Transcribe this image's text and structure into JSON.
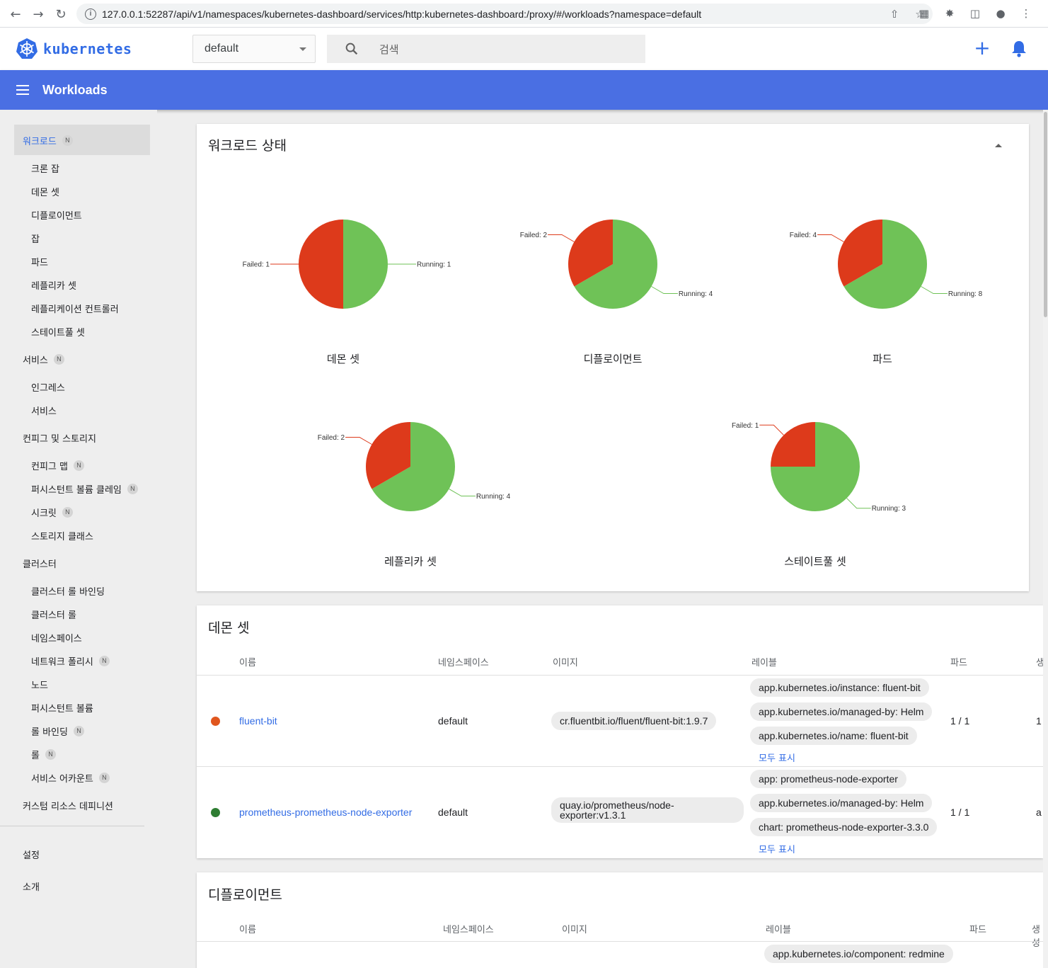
{
  "browser": {
    "url": "127.0.0.1:52287/api/v1/namespaces/kubernetes-dashboard/services/http:kubernetes-dashboard:/proxy/#/workloads?namespace=default"
  },
  "header": {
    "logo_text": "kubernetes",
    "namespace": "default",
    "search_placeholder": "검색"
  },
  "toolbar": {
    "title": "Workloads"
  },
  "sidebar": {
    "badge": "N",
    "workloads": "워크로드",
    "cronjobs": "크론 잡",
    "daemonsets": "데몬 셋",
    "deployments": "디플로이먼트",
    "jobs": "잡",
    "pods": "파드",
    "replicasets": "레플리카 셋",
    "replicationcontrollers": "레플리케이션 컨트롤러",
    "statefulsets": "스테이트풀 셋",
    "services": "서비스",
    "ingresses": "인그레스",
    "services_sub": "서비스",
    "config_storage": "컨피그 및 스토리지",
    "configmaps": "컨피그 맵",
    "pvc": "퍼시스턴트 볼륨 클레임",
    "secrets": "시크릿",
    "storageclasses": "스토리지 클래스",
    "cluster": "클러스터",
    "clusterrolebindings": "클러스터 롤 바인딩",
    "clusterroles": "클러스터 롤",
    "namespaces": "네임스페이스",
    "networkpolicies": "네트워크 폴리시",
    "nodes": "노드",
    "pv": "퍼시스턴트 볼륨",
    "rolebindings": "롤 바인딩",
    "roles": "롤",
    "serviceaccounts": "서비스 어카운트",
    "crd": "커스텀 리소스 데피니션",
    "settings": "설정",
    "about": "소개"
  },
  "status": {
    "title": "워크로드 상태",
    "colors": {
      "failed": "#dd3a1b",
      "running": "#6fc257"
    },
    "charts": [
      {
        "name": "데몬 셋",
        "failed": 1,
        "running": 1,
        "failed_label": "Failed: 1",
        "running_label": "Running: 1"
      },
      {
        "name": "디플로이먼트",
        "failed": 2,
        "running": 4,
        "failed_label": "Failed: 2",
        "running_label": "Running: 4"
      },
      {
        "name": "파드",
        "failed": 4,
        "running": 8,
        "failed_label": "Failed: 4",
        "running_label": "Running: 8"
      },
      {
        "name": "레플리카 셋",
        "failed": 2,
        "running": 4,
        "failed_label": "Failed: 2",
        "running_label": "Running: 4"
      },
      {
        "name": "스테이트풀 셋",
        "failed": 1,
        "running": 3,
        "failed_label": "Failed: 1",
        "running_label": "Running: 3"
      }
    ]
  },
  "daemonsets": {
    "title": "데몬 셋",
    "columns": {
      "name": "이름",
      "namespace": "네임스페이스",
      "images": "이미지",
      "labels": "레이블",
      "pods": "파드",
      "created": "생"
    },
    "show_all": "모두 표시",
    "rows": [
      {
        "status_color": "#e0561e",
        "name": "fluent-bit",
        "namespace": "default",
        "image": "cr.fluentbit.io/fluent/fluent-bit:1.9.7",
        "labels": [
          "app.kubernetes.io/instance: fluent-bit",
          "app.kubernetes.io/managed-by: Helm",
          "app.kubernetes.io/name: fluent-bit"
        ],
        "pods": "1 / 1",
        "created": "1"
      },
      {
        "status_color": "#2e7d32",
        "name": "prometheus-prometheus-node-exporter",
        "namespace": "default",
        "image": "quay.io/prometheus/node-exporter:v1.3.1",
        "labels": [
          "app: prometheus-node-exporter",
          "app.kubernetes.io/managed-by: Helm",
          "chart: prometheus-node-exporter-3.3.0"
        ],
        "pods": "1 / 1",
        "created": "a"
      }
    ]
  },
  "deployments": {
    "title": "디플로이먼트",
    "columns": {
      "name": "이름",
      "namespace": "네임스페이스",
      "images": "이미지",
      "labels": "레이블",
      "pods": "파드",
      "created": "생성"
    },
    "rows": [
      {
        "labels": [
          "app.kubernetes.io/component: redmine"
        ]
      }
    ]
  }
}
